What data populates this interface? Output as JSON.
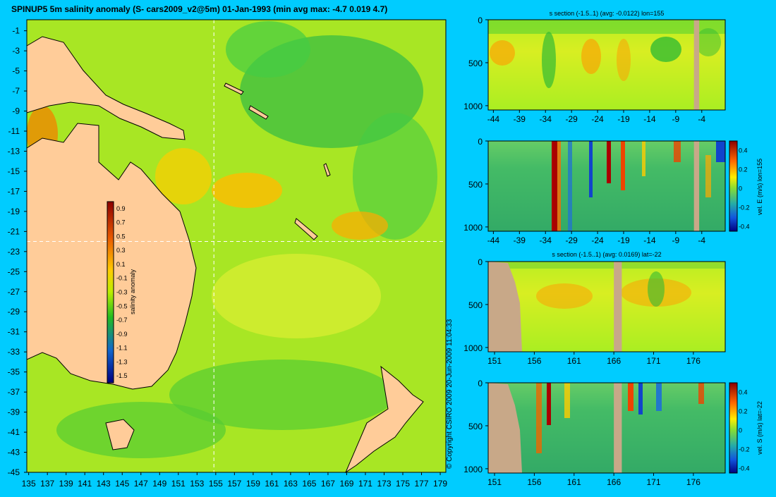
{
  "main_title": "SPINUP5 5m salinity anomaly  (S- cars2009_v2@5m) 01-Jan-1993  (min avg max: -4.7 0.019 4.7)",
  "copyright": "© Copyright CSIRO 2009   20-Jun-2009 11:04:33",
  "colors": {
    "background": "#00ccff",
    "land": "#ffcc99",
    "section_mask": "#c8a888"
  },
  "chart_data": [
    {
      "type": "heatmap",
      "title": "",
      "x_ticks": [
        "135",
        "137",
        "139",
        "141",
        "143",
        "145",
        "147",
        "149",
        "151",
        "153",
        "155",
        "157",
        "159",
        "161",
        "163",
        "165",
        "167",
        "169",
        "171",
        "173",
        "175",
        "177",
        "179"
      ],
      "y_ticks": [
        "-1",
        "-3",
        "-5",
        "-7",
        "-9",
        "-11",
        "-13",
        "-15",
        "-17",
        "-19",
        "-21",
        "-23",
        "-25",
        "-27",
        "-29",
        "-31",
        "-33",
        "-35",
        "-37",
        "-39",
        "-41",
        "-43",
        "-45"
      ],
      "xlim": [
        134.8,
        179.6
      ],
      "ylim": [
        -45,
        0.1
      ],
      "colorbar": {
        "label": "salinity anomaly",
        "ticks": [
          "0.9",
          "0.7",
          "0.5",
          "0.3",
          "0.1",
          "-0.1",
          "-0.3",
          "-0.5",
          "-0.7",
          "-0.9",
          "-1.1",
          "-1.3",
          "-1.5"
        ],
        "range": [
          -1.6,
          1.0
        ]
      },
      "reference_lines": {
        "lon": 155,
        "lat": -22
      }
    },
    {
      "type": "heatmap",
      "title": "s section (-1.5..1) (avg: -0.0122) lon=155",
      "x_ticks": [
        "-44",
        "-39",
        "-34",
        "-29",
        "-24",
        "-19",
        "-14",
        "-9",
        "-4"
      ],
      "y_ticks": [
        "0",
        "500",
        "1000"
      ],
      "xlim": [
        -45,
        0.5
      ],
      "ylim": [
        1050,
        0
      ],
      "mask_x": [
        -5.5,
        -4.5
      ]
    },
    {
      "type": "heatmap",
      "title": "",
      "x_ticks": [
        "-44",
        "-39",
        "-34",
        "-29",
        "-24",
        "-19",
        "-14",
        "-9",
        "-4"
      ],
      "y_ticks": [
        "0",
        "500",
        "1000"
      ],
      "xlim": [
        -45,
        0.5
      ],
      "ylim": [
        1050,
        0
      ],
      "mask_x": [
        -5.5,
        -4.5
      ],
      "colorbar": {
        "label": "vel. E (m/s) lon=155",
        "ticks": [
          "0.4",
          "0.2",
          "0",
          "-0.2",
          "-0.4"
        ],
        "range": [
          -0.45,
          0.5
        ]
      }
    },
    {
      "type": "heatmap",
      "title": "s section (-1.5..1) (avg: 0.0169) lat=-22",
      "x_ticks": [
        "151",
        "156",
        "161",
        "166",
        "171",
        "176"
      ],
      "y_ticks": [
        "0",
        "500",
        "1000"
      ],
      "xlim": [
        150.2,
        180
      ],
      "ylim": [
        1050,
        0
      ],
      "mask_x": [
        166,
        167
      ]
    },
    {
      "type": "heatmap",
      "title": "",
      "x_ticks": [
        "151",
        "156",
        "161",
        "166",
        "171",
        "176"
      ],
      "y_ticks": [
        "0",
        "500",
        "1000"
      ],
      "xlim": [
        150.2,
        180
      ],
      "ylim": [
        1050,
        0
      ],
      "mask_x": [
        166,
        167
      ],
      "colorbar": {
        "label": "vel. S (m/s) lat=-22",
        "ticks": [
          "0.4",
          "0.2",
          "0",
          "-0.2",
          "-0.4"
        ],
        "range": [
          -0.45,
          0.5
        ]
      }
    }
  ]
}
